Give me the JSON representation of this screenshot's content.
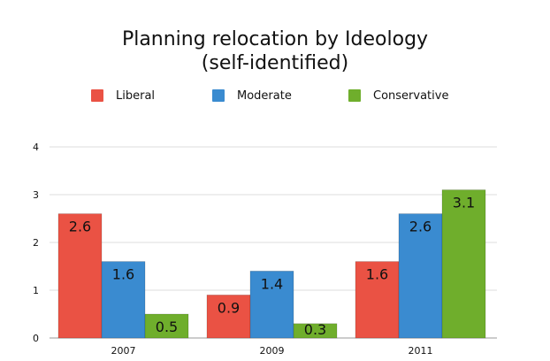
{
  "chart_data": {
    "type": "bar",
    "title": "Planning relocation by Ideology (self-identified)",
    "title_lines": [
      "Planning relocation by Ideology",
      "(self-identified)"
    ],
    "xlabel": "",
    "ylabel": "",
    "categories": [
      "2007",
      "2009",
      "2011"
    ],
    "series": [
      {
        "name": "Liberal",
        "color": "#ea5244",
        "values": [
          2.6,
          0.9,
          1.6
        ]
      },
      {
        "name": "Moderate",
        "color": "#3a8bd0",
        "values": [
          1.6,
          1.4,
          2.6
        ]
      },
      {
        "name": "Conservative",
        "color": "#6fae2c",
        "values": [
          0.5,
          0.3,
          3.1
        ]
      }
    ],
    "yticks": [
      0,
      1,
      2,
      3,
      4
    ],
    "ylim": [
      0,
      4
    ],
    "grid": true,
    "data_labels": true,
    "legend_position": "top"
  }
}
